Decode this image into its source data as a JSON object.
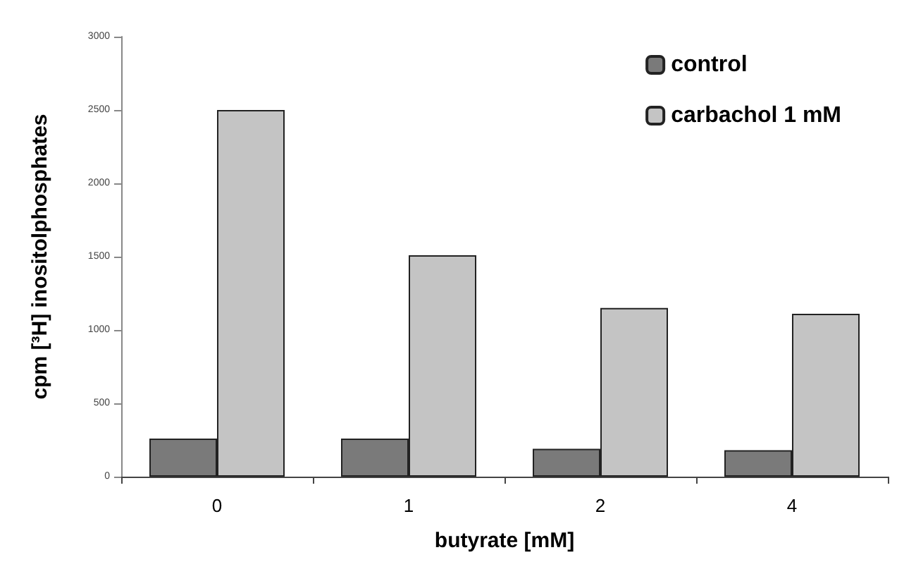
{
  "chart_data": {
    "type": "bar",
    "xlabel": "butyrate [mM]",
    "ylabel": "cpm [³H] inositolphosphates",
    "categories": [
      "0",
      "1",
      "2",
      "4"
    ],
    "series": [
      {
        "name": "control",
        "color": "#7a7a7a",
        "values": [
          260,
          260,
          190,
          180
        ]
      },
      {
        "name": "carbachol 1 mM",
        "color": "#c4c4c4",
        "values": [
          2500,
          1510,
          1150,
          1110
        ]
      }
    ],
    "ylim": [
      0,
      3000
    ],
    "yticks": [
      0,
      500,
      1000,
      1500,
      2000,
      2500,
      3000
    ],
    "grid": false,
    "legend": "top right"
  }
}
